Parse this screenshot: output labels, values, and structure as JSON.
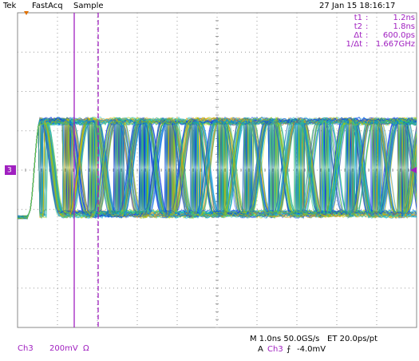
{
  "header": {
    "brand": "Tek",
    "mode": "FastAcq",
    "acquisition": "Sample",
    "timestamp": "27 Jan 15 18:16:17"
  },
  "readouts": {
    "separator": ":",
    "rows": [
      {
        "label": "t1",
        "value": "1.2ns"
      },
      {
        "label": "t2",
        "value": "1.8ns"
      },
      {
        "label": "Δt",
        "value": "600.0ps"
      },
      {
        "label": "1/Δt",
        "value": "1.667GHz"
      }
    ]
  },
  "channel_marker": "3",
  "footer": {
    "channel": "Ch3",
    "scale": "200mV",
    "coupling": "Ω",
    "timebase": "M 1.0ns 50.0GS/s",
    "equivalent_time": "ET 20.0ps/pt",
    "trigger_mode": "A",
    "trigger_source": "Ch3",
    "trigger_slope": "⨍",
    "trigger_level": "-4.0mV"
  }
}
